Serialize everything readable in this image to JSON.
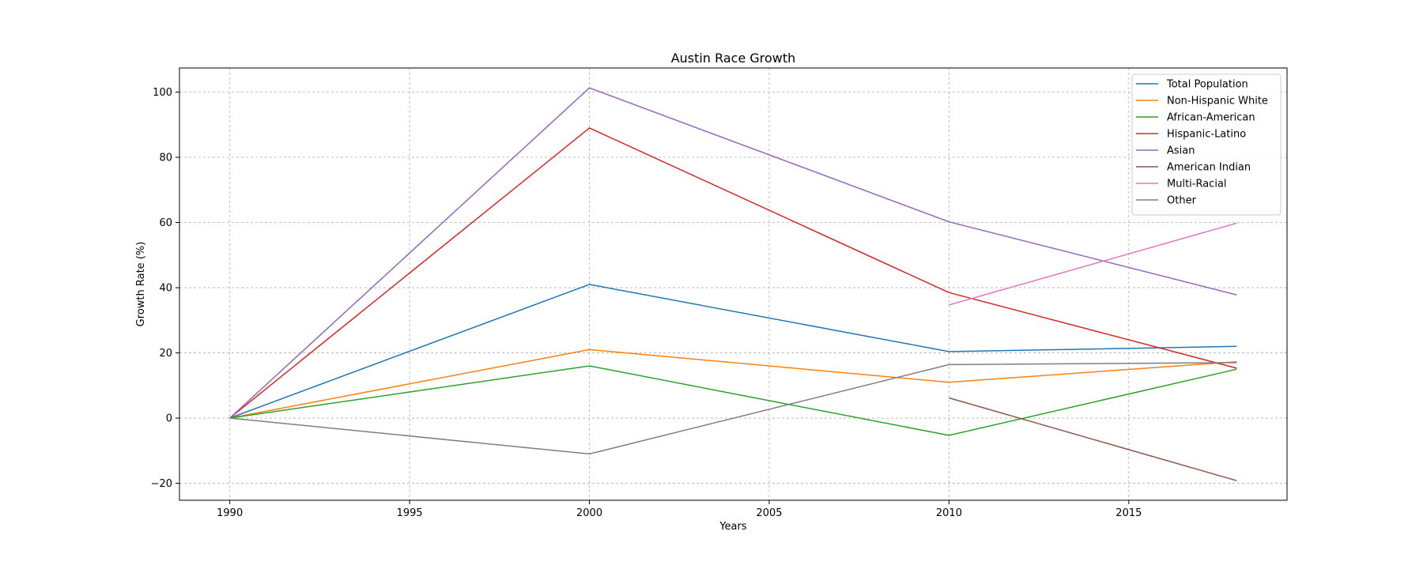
{
  "chart_data": {
    "type": "line",
    "title": "Austin Race Growth",
    "xlabel": "Years",
    "ylabel": "Growth Rate (%)",
    "xlim": [
      1988.6,
      2019.4
    ],
    "ylim": [
      -25.2,
      107.4
    ],
    "xticks": [
      1990,
      1995,
      2000,
      2005,
      2010,
      2015
    ],
    "yticks": [
      -20,
      0,
      20,
      40,
      60,
      80,
      100
    ],
    "grid": true,
    "legend_position": "top-right",
    "series": [
      {
        "name": "Total Population",
        "color": "#1f77b4",
        "points": [
          [
            1990,
            0
          ],
          [
            2000,
            41
          ],
          [
            2010,
            20.4
          ],
          [
            2018,
            22
          ]
        ]
      },
      {
        "name": "Non-Hispanic White",
        "color": "#ff7f0e",
        "points": [
          [
            1990,
            0
          ],
          [
            2000,
            21
          ],
          [
            2010,
            11
          ],
          [
            2018,
            17.3
          ]
        ]
      },
      {
        "name": "African-American",
        "color": "#2ca02c",
        "points": [
          [
            1990,
            0
          ],
          [
            2000,
            16
          ],
          [
            2010,
            -5.3
          ],
          [
            2018,
            15
          ]
        ]
      },
      {
        "name": "Hispanic-Latino",
        "color": "#d62728",
        "points": [
          [
            1990,
            0
          ],
          [
            2000,
            89
          ],
          [
            2010,
            38.5
          ],
          [
            2018,
            15.3
          ]
        ]
      },
      {
        "name": "Asian",
        "color": "#9467bd",
        "points": [
          [
            1990,
            0
          ],
          [
            2000,
            101.3
          ],
          [
            2010,
            60.2
          ],
          [
            2018,
            37.8
          ]
        ]
      },
      {
        "name": "American Indian",
        "color": "#8c564b",
        "points": [
          [
            2010,
            6.2
          ],
          [
            2018,
            -19.2
          ]
        ]
      },
      {
        "name": "Multi-Racial",
        "color": "#e377c2",
        "points": [
          [
            2010,
            34.7
          ],
          [
            2018,
            59.8
          ]
        ]
      },
      {
        "name": "Other",
        "color": "#7f7f7f",
        "points": [
          [
            1990,
            0
          ],
          [
            2000,
            -11
          ],
          [
            2010,
            16.4
          ],
          [
            2018,
            17
          ]
        ]
      }
    ]
  }
}
